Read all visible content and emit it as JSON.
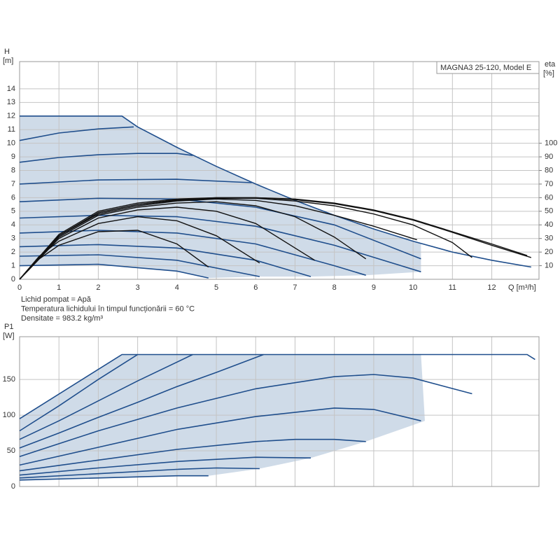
{
  "chart_data": [
    {
      "type": "line",
      "model_label": "MAGNA3 25-120, Model E",
      "ylabel": "H",
      "yunit": "[m]",
      "y2label": "eta",
      "y2unit": "[%]",
      "xlabel": "Q [m³/h]",
      "xlim": [
        0,
        13.2
      ],
      "xticks": [
        0,
        1,
        2,
        3,
        4,
        5,
        6,
        7,
        8,
        9,
        10,
        11,
        12
      ],
      "ylim": [
        0,
        16
      ],
      "yticks": [
        0,
        1,
        2,
        3,
        4,
        5,
        6,
        7,
        8,
        9,
        10,
        11,
        12,
        13,
        14
      ],
      "y2lim": [
        0,
        160
      ],
      "y2ticks": [
        10,
        20,
        30,
        40,
        50,
        60,
        70,
        80,
        90,
        100
      ],
      "grid": true,
      "notes": [
        "Lichid pompat = Apă",
        "Temperatura lichidului în timpul funcționării = 60 °C",
        "Densitate = 983.2 kg/m³"
      ],
      "shaded_area": {
        "color": "#cfdbe8",
        "x": [
          0,
          2.6,
          3,
          4,
          5,
          6,
          7,
          8,
          9,
          10,
          10.2,
          10.2,
          8.8,
          7.4,
          6.1,
          4.8,
          4,
          2,
          0
        ],
        "values": [
          12,
          12,
          11.2,
          9.7,
          8.3,
          7.0,
          5.8,
          4.7,
          3.7,
          2.8,
          2.65,
          0.55,
          0.3,
          0.2,
          0.2,
          0.1,
          0.6,
          1.1,
          1.0
        ]
      },
      "series": [
        {
          "color": "#1f4e8c",
          "x": [
            0,
            2.6,
            3,
            4,
            5,
            6,
            7,
            8,
            9,
            10,
            11,
            12,
            13
          ],
          "values": [
            12,
            12,
            11.2,
            9.7,
            8.3,
            7.0,
            5.8,
            4.7,
            3.7,
            2.8,
            2.0,
            1.4,
            0.9
          ]
        },
        {
          "color": "#1f4e8c",
          "x": [
            0,
            1,
            2,
            2.9
          ],
          "values": [
            10.2,
            10.75,
            11.05,
            11.2
          ]
        },
        {
          "color": "#1f4e8c",
          "x": [
            0,
            1,
            2,
            3,
            4,
            4.4
          ],
          "values": [
            8.6,
            8.95,
            9.15,
            9.25,
            9.25,
            9.1
          ]
        },
        {
          "color": "#1f4e8c",
          "x": [
            0,
            2,
            4,
            5.9
          ],
          "values": [
            7.0,
            7.3,
            7.35,
            7.1
          ]
        },
        {
          "color": "#1f4e8c",
          "x": [
            0,
            2,
            4,
            6,
            8,
            10.2
          ],
          "values": [
            5.7,
            5.95,
            5.9,
            5.3,
            4.0,
            1.5
          ]
        },
        {
          "color": "#1f4e8c",
          "x": [
            0,
            2,
            4,
            6,
            8,
            10.2
          ],
          "values": [
            4.5,
            4.7,
            4.6,
            3.9,
            2.5,
            0.55
          ]
        },
        {
          "color": "#1f4e8c",
          "x": [
            0,
            2,
            4,
            6,
            8,
            8.8
          ],
          "values": [
            3.4,
            3.6,
            3.4,
            2.6,
            1.0,
            0.3
          ]
        },
        {
          "color": "#1f4e8c",
          "x": [
            0,
            2,
            4,
            6,
            7.4
          ],
          "values": [
            2.4,
            2.55,
            2.3,
            1.4,
            0.2
          ]
        },
        {
          "color": "#1f4e8c",
          "x": [
            0,
            2,
            4,
            6.1
          ],
          "values": [
            1.7,
            1.8,
            1.4,
            0.2
          ]
        },
        {
          "color": "#1f4e8c",
          "x": [
            0,
            2,
            4,
            4.8
          ],
          "values": [
            1.0,
            1.1,
            0.6,
            0.1
          ]
        },
        {
          "color": "#111111",
          "axis": "y2",
          "x": [
            0,
            0.5,
            1,
            2,
            3,
            4,
            4.8
          ],
          "values": [
            0,
            15,
            25,
            35,
            36,
            26,
            9
          ]
        },
        {
          "color": "#111111",
          "axis": "y2",
          "x": [
            0,
            0.5,
            1,
            2,
            3,
            4,
            5,
            6.1
          ],
          "values": [
            0,
            17,
            28,
            41,
            46,
            43,
            32,
            12
          ]
        },
        {
          "color": "#111111",
          "axis": "y2",
          "x": [
            0,
            1,
            2,
            3,
            4,
            5,
            6,
            7.5
          ],
          "values": [
            0,
            30,
            45,
            51,
            53,
            50,
            41,
            14
          ]
        },
        {
          "color": "#111111",
          "axis": "y2",
          "x": [
            0,
            1,
            2,
            3,
            4,
            5,
            6,
            7,
            8,
            8.8
          ],
          "values": [
            0,
            31,
            47,
            53,
            56,
            57,
            54,
            46,
            31,
            15
          ]
        },
        {
          "color": "#111111",
          "axis": "y2",
          "x": [
            0,
            1,
            2,
            3,
            4,
            5,
            6,
            7,
            8,
            9,
            10.1
          ],
          "values": [
            0,
            32,
            48,
            54,
            57.5,
            59,
            58,
            54,
            47,
            39,
            29
          ]
        },
        {
          "color": "#111111",
          "axis": "y2",
          "x": [
            0,
            1,
            2,
            3,
            4,
            5,
            6,
            7,
            8,
            9,
            10,
            11,
            11.5
          ],
          "values": [
            0,
            32,
            49,
            55,
            58,
            59.5,
            59.5,
            57.5,
            54,
            48,
            40,
            27,
            16
          ]
        },
        {
          "color": "#111111",
          "axis": "y2",
          "x": [
            0,
            1,
            2,
            3,
            4,
            5,
            6,
            7,
            8,
            9,
            10,
            11,
            12,
            12.9
          ],
          "values": [
            0,
            32,
            49,
            55,
            58.5,
            60,
            60,
            59,
            56,
            51,
            44,
            35,
            26,
            17.5
          ]
        },
        {
          "color": "#111111",
          "axis": "y2",
          "x": [
            0,
            1,
            2,
            3,
            4,
            5,
            6,
            7,
            8,
            9,
            10,
            11,
            12,
            13
          ],
          "values": [
            0,
            33,
            50,
            56,
            59,
            60,
            60,
            58.5,
            55.5,
            50.5,
            43.5,
            34.5,
            25,
            16
          ]
        }
      ]
    },
    {
      "type": "line",
      "ylabel": "P1",
      "yunit": "[W]",
      "xlim": [
        0,
        13.2
      ],
      "xticks": [
        0,
        1,
        2,
        3,
        4,
        5,
        6,
        7,
        8,
        9,
        10,
        11,
        12
      ],
      "xtick_labels": false,
      "ylim": [
        0,
        210
      ],
      "yticks": [
        0,
        50,
        100,
        150
      ],
      "grid": true,
      "shaded_area": {
        "color": "#cfdbe8",
        "x": [
          0,
          2.6,
          10.2,
          10.3,
          8.8,
          7.4,
          6.1,
          4.8,
          4,
          2,
          0
        ],
        "values": [
          95,
          185,
          185,
          92,
          63,
          40,
          25,
          15,
          15,
          12,
          9
        ]
      },
      "series": [
        {
          "color": "#1f4e8c",
          "x": [
            0,
            2.6,
            12.9,
            13.1
          ],
          "values": [
            95,
            185,
            185,
            178
          ]
        },
        {
          "color": "#1f4e8c",
          "x": [
            0,
            1,
            2,
            3
          ],
          "values": [
            78,
            113,
            150,
            185
          ]
        },
        {
          "color": "#1f4e8c",
          "x": [
            0,
            1,
            2,
            3,
            4.4
          ],
          "values": [
            66,
            92,
            120,
            148,
            185
          ]
        },
        {
          "color": "#1f4e8c",
          "x": [
            0,
            1,
            2,
            3,
            4,
            5,
            6.2
          ],
          "values": [
            54,
            75,
            97,
            118,
            140,
            160,
            185
          ]
        },
        {
          "color": "#1f4e8c",
          "x": [
            0,
            2,
            4,
            6,
            8,
            9,
            10,
            11.5
          ],
          "values": [
            42,
            78,
            110,
            137,
            154,
            157,
            152,
            130
          ]
        },
        {
          "color": "#1f4e8c",
          "x": [
            0,
            2,
            4,
            6,
            8,
            9,
            10.2
          ],
          "values": [
            30,
            55,
            80,
            98,
            110,
            108,
            92
          ]
        },
        {
          "color": "#1f4e8c",
          "x": [
            0,
            2,
            4,
            6,
            7,
            8,
            8.8
          ],
          "values": [
            22,
            37,
            52,
            63,
            66,
            66,
            63
          ]
        },
        {
          "color": "#1f4e8c",
          "x": [
            0,
            2,
            4,
            6,
            7.4
          ],
          "values": [
            16,
            26,
            35,
            41,
            40
          ]
        },
        {
          "color": "#1f4e8c",
          "x": [
            0,
            2,
            4,
            5,
            6.1
          ],
          "values": [
            12,
            18,
            24,
            26,
            25
          ]
        },
        {
          "color": "#1f4e8c",
          "x": [
            0,
            2,
            4,
            4.8
          ],
          "values": [
            9,
            12,
            15,
            15
          ]
        }
      ]
    }
  ]
}
